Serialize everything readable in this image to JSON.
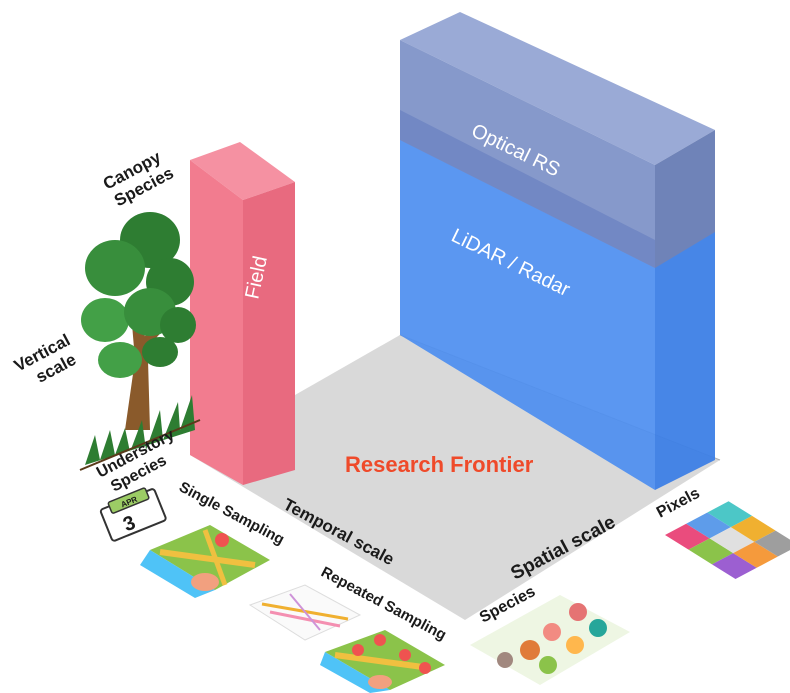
{
  "labels": {
    "canopy_species": [
      "Canopy",
      "Species"
    ],
    "vertical_scale": [
      "Vertical",
      "scale"
    ],
    "understory_species": [
      "Understory",
      "Species"
    ],
    "field": "Field",
    "optical_rs": "Optical RS",
    "lidar_radar": "LiDAR / Radar",
    "research_frontier": "Research Frontier",
    "single_sampling": "Single Sampling",
    "temporal_scale": "Temporal scale",
    "repeated_sampling": "Repeated Sampling",
    "spatial_scale": "Spatial scale",
    "species": "Species",
    "pixels": "Pixels"
  },
  "calendar": {
    "month": "APR",
    "day": "3"
  },
  "colors": {
    "field_front": "#f27c8f",
    "field_side": "#e86a7f",
    "lidar": "#4d8ef0",
    "optical": "#8a9ccc",
    "floor": "#d9d9d9",
    "frontier_text": "#ef4a2a"
  },
  "pixel_grid_colors": [
    "#ea4c7d",
    "#5e9cea",
    "#4cc7c7",
    "#8bc34a",
    "#e0e0e0",
    "#f0b030",
    "#9c5fd1",
    "#f59a3c",
    "#9e9e9e"
  ],
  "icons": [
    "tree-icon",
    "calendar-icon",
    "map-icon",
    "schedule-icon",
    "species-icon",
    "pixel-grid-icon"
  ]
}
